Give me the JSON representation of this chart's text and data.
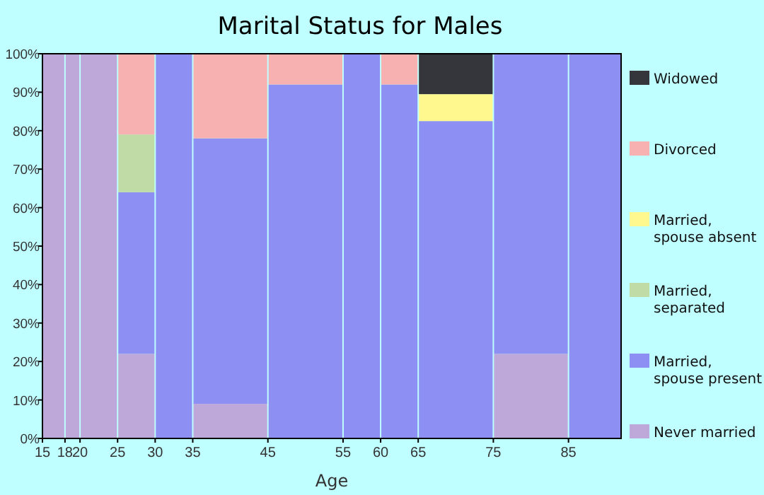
{
  "chart_data": {
    "type": "bar",
    "title": "Marital Status for Males",
    "xlabel": "Age",
    "stacked": true,
    "legend": "right",
    "grid": "x",
    "x": [
      16.5,
      19,
      22.5,
      27.5,
      32.5,
      40,
      50,
      57.5,
      62.5,
      70,
      80,
      88.5
    ],
    "xlim": [
      15,
      92
    ],
    "xticks": [
      15,
      18,
      20,
      25,
      30,
      35,
      45,
      55,
      60,
      65,
      75,
      85
    ],
    "ylim": [
      0,
      100
    ],
    "yticks": [
      {
        "value": 0,
        "label": "0%"
      },
      {
        "value": 10,
        "label": "10%"
      },
      {
        "value": 20,
        "label": "20%"
      },
      {
        "value": 30,
        "label": "30%"
      },
      {
        "value": 40,
        "label": "40%"
      },
      {
        "value": 50,
        "label": "50%"
      },
      {
        "value": 60,
        "label": "60%"
      },
      {
        "value": 70,
        "label": "70%"
      },
      {
        "value": 80,
        "label": "80%"
      },
      {
        "value": 90,
        "label": "90%"
      },
      {
        "value": 100,
        "label": "100%"
      }
    ],
    "series": [
      {
        "name": "Never married",
        "color": "#bea8d9",
        "values": [
          100,
          100,
          100,
          22,
          null,
          9,
          null,
          null,
          null,
          null,
          22,
          null
        ]
      },
      {
        "name": "Married, spouse present",
        "color": "#8e8ff2",
        "values": [
          null,
          null,
          null,
          42,
          100,
          69,
          92,
          100,
          92,
          82.5,
          78,
          100
        ]
      },
      {
        "name": "Married, separated",
        "color": "#c1dba6",
        "values": [
          null,
          null,
          null,
          15,
          null,
          null,
          null,
          null,
          null,
          null,
          null,
          null
        ]
      },
      {
        "name": "Married, spouse absent",
        "color": "#fff88f",
        "values": [
          null,
          null,
          null,
          null,
          null,
          null,
          null,
          null,
          null,
          7,
          null,
          null
        ]
      },
      {
        "name": "Divorced",
        "color": "#f7b1b1",
        "values": [
          null,
          null,
          null,
          21,
          null,
          22,
          8,
          null,
          8,
          null,
          null,
          null
        ]
      },
      {
        "name": "Widowed",
        "color": "#35363c",
        "values": [
          null,
          null,
          null,
          null,
          null,
          null,
          null,
          null,
          null,
          10.5,
          null,
          null
        ]
      }
    ]
  }
}
